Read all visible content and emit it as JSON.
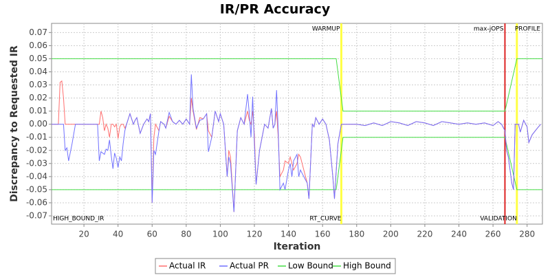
{
  "chart_data": {
    "type": "line",
    "title": "IR/PR Accuracy",
    "x_label": "Iteration",
    "y_label": "Discrepancy to Requested IR",
    "xlim": [
      1,
      289
    ],
    "ylim": [
      -0.0763,
      0.077
    ],
    "xticks": [
      20,
      40,
      60,
      80,
      100,
      120,
      140,
      160,
      180,
      200,
      220,
      240,
      260,
      280
    ],
    "yticks": [
      -0.07,
      -0.06,
      -0.05,
      -0.04,
      -0.03,
      -0.02,
      -0.01,
      {
        "value": 0,
        "label": "0.00"
      },
      0.01,
      0.02,
      0.03,
      0.04,
      0.05,
      0.06,
      0.07
    ],
    "grid": true,
    "x": [
      1,
      5,
      6,
      7,
      8,
      9,
      10,
      11,
      13,
      15,
      20,
      25,
      28,
      29,
      30,
      31,
      32,
      33,
      34,
      35,
      36,
      37,
      38,
      39,
      40,
      41,
      42,
      43,
      44,
      45,
      47,
      49,
      50,
      51,
      53,
      55,
      57,
      58,
      59,
      60,
      61,
      62,
      64,
      65,
      67,
      68,
      70,
      72,
      74,
      76,
      78,
      80,
      82,
      83,
      84,
      86,
      88,
      90,
      92,
      93,
      95,
      97,
      99,
      100,
      102,
      104,
      105,
      106,
      108,
      110,
      112,
      114,
      116,
      117,
      118,
      119,
      120,
      121,
      123,
      126,
      128,
      130,
      131,
      132,
      133,
      134,
      135,
      137,
      138,
      140,
      141,
      142,
      143,
      145,
      146,
      147,
      149,
      151,
      152,
      154,
      155,
      156,
      158,
      160,
      162,
      164,
      166,
      167,
      169,
      171,
      175,
      180,
      185,
      190,
      195,
      200,
      205,
      210,
      215,
      220,
      225,
      230,
      235,
      240,
      245,
      250,
      255,
      260,
      263,
      265,
      267,
      268,
      269,
      271,
      272,
      273,
      275,
      276,
      278,
      280,
      281,
      283,
      286,
      288
    ],
    "series": [
      {
        "name": "Actual IR",
        "color": "#ff6e6e",
        "values": [
          0,
          0,
          0.032,
          0.033,
          0.02,
          0,
          0,
          0,
          0,
          0,
          0,
          0,
          0,
          0,
          0.01,
          0.005,
          -0.005,
          0,
          -0.003,
          -0.01,
          0,
          0,
          -0.002,
          0,
          -0.011,
          -0.002,
          0,
          0,
          -0.003,
          0,
          0.008,
          0,
          0.003,
          0.005,
          -0.007,
          0,
          0.004,
          0.002,
          0.008,
          -0.06,
          -0.01,
          0,
          -0.005,
          0.002,
          0,
          -0.003,
          0.006,
          0.002,
          0,
          0.003,
          0,
          0.004,
          0,
          0.02,
          0.01,
          -0.004,
          0.005,
          0.004,
          0.008,
          -0.005,
          -0.01,
          0.01,
          0.002,
          0.008,
          0,
          -0.04,
          -0.02,
          -0.025,
          -0.067,
          -0.005,
          0.005,
          0,
          0.01,
          0.003,
          0,
          0.01,
          -0.008,
          -0.046,
          -0.02,
          0,
          -0.003,
          0.012,
          -0.003,
          0,
          0.01,
          -0.01,
          -0.04,
          -0.035,
          -0.028,
          -0.03,
          -0.025,
          -0.03,
          -0.035,
          -0.03,
          -0.023,
          -0.025,
          -0.035,
          -0.045,
          -0.057,
          0,
          -0.002,
          0.005,
          0,
          0.004,
          0,
          -0.012,
          -0.04,
          -0.057,
          -0.015,
          0,
          0,
          0,
          -0.001,
          0.001,
          -0.001,
          0.002,
          0.001,
          -0.001,
          0.002,
          0.001,
          -0.001,
          0.002,
          0.001,
          0,
          0.001,
          0,
          0.001,
          -0.001,
          0.002,
          0,
          -0.005,
          -0.02,
          -0.025,
          -0.045,
          -0.05,
          0,
          0,
          -0.006,
          0.003,
          -0.002,
          -0.014,
          -0.008,
          -0.003,
          0
        ]
      },
      {
        "name": "Actual PR",
        "color": "#7070ff",
        "values": [
          0,
          0,
          0,
          0,
          0,
          -0.02,
          -0.018,
          -0.028,
          -0.015,
          0,
          0,
          0,
          0,
          -0.028,
          -0.021,
          -0.022,
          -0.023,
          -0.019,
          -0.02,
          -0.012,
          -0.024,
          -0.034,
          -0.022,
          -0.026,
          -0.033,
          -0.025,
          -0.028,
          -0.015,
          -0.005,
          0,
          0.008,
          0,
          0.003,
          0.005,
          -0.007,
          0,
          0.004,
          0.002,
          0.008,
          -0.06,
          -0.02,
          -0.023,
          -0.005,
          0.002,
          0,
          -0.003,
          0.009,
          0.002,
          0,
          0.003,
          0,
          0.004,
          0,
          0.038,
          0.012,
          -0.003,
          0.003,
          0.004,
          0.008,
          -0.021,
          -0.01,
          0.01,
          0.002,
          0.008,
          0,
          -0.04,
          -0.025,
          -0.03,
          -0.067,
          -0.005,
          0.005,
          0,
          0.023,
          0.008,
          -0.01,
          0.021,
          -0.015,
          -0.046,
          -0.02,
          0,
          -0.003,
          0.012,
          -0.003,
          0,
          0.026,
          -0.005,
          -0.05,
          -0.045,
          -0.05,
          -0.035,
          -0.03,
          -0.04,
          -0.028,
          -0.023,
          -0.04,
          -0.035,
          -0.04,
          -0.045,
          -0.057,
          0,
          -0.002,
          0.005,
          0,
          0.004,
          0,
          -0.012,
          -0.04,
          -0.057,
          -0.015,
          0,
          0,
          0,
          -0.001,
          0.001,
          -0.001,
          0.002,
          0.001,
          -0.001,
          0.002,
          0.001,
          -0.001,
          0.002,
          0.001,
          0,
          0.001,
          0,
          0.001,
          -0.001,
          0.002,
          0,
          -0.005,
          -0.02,
          -0.025,
          -0.045,
          -0.05,
          0,
          0,
          -0.006,
          0.003,
          -0.002,
          -0.014,
          -0.008,
          -0.003,
          0
        ]
      },
      {
        "name": "Low Bound",
        "color": "#44dd44",
        "x": [
          1,
          168,
          172,
          267,
          274,
          289
        ],
        "values": [
          -0.05,
          -0.05,
          -0.01,
          -0.01,
          -0.05,
          -0.05
        ]
      },
      {
        "name": "High Bound",
        "color": "#44dd44",
        "x": [
          1,
          168,
          172,
          267,
          274,
          289
        ],
        "values": [
          0.05,
          0.05,
          0.01,
          0.01,
          0.05,
          0.05
        ]
      }
    ],
    "markers": [
      {
        "x": 171,
        "color": "#ffff44",
        "label": "WARMUP"
      },
      {
        "x": 267,
        "color": "#dd2222",
        "label": "max-jOPS"
      },
      {
        "x": 274,
        "color": "#ffff44",
        "label": "PROFILE"
      }
    ],
    "bottom_labels": [
      {
        "x": 1,
        "label": "HIGH_BOUND_IR"
      },
      {
        "x": 171,
        "label": "RT_CURVE"
      },
      {
        "x": 274,
        "label": "VALIDATION"
      }
    ]
  }
}
